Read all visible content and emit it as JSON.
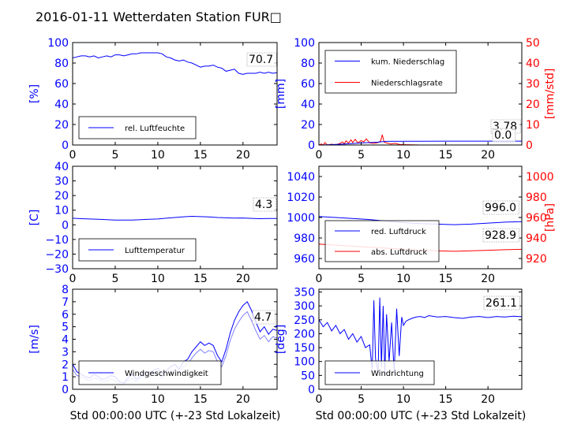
{
  "title": "2016-01-11 Wetterdaten Station FUR□",
  "xlabel": "Std 00:00:00 UTC (+-23 Std Lokalzeit)",
  "colors": {
    "left_axis": "#0000ff",
    "right_axis": "#ff0000",
    "wind_light": "#8080ff",
    "text": "#000000"
  },
  "chart_data": [
    {
      "id": "humidity",
      "type": "line",
      "x_ticks": [
        "0",
        "5",
        "10",
        "15",
        "20"
      ],
      "xlim": [
        0,
        24
      ],
      "ylim": [
        0,
        100
      ],
      "y_ticks": [
        "0",
        "20",
        "40",
        "60",
        "80",
        "100"
      ],
      "ylabel": "[%]",
      "legend": [
        "rel. Luftfeuchte"
      ],
      "value_label": "70.7",
      "series": [
        {
          "name": "rel. Luftfeuchte",
          "color": "#0000ff",
          "x": [
            0,
            0.5,
            1,
            1.5,
            2,
            2.5,
            3,
            3.5,
            4,
            4.5,
            5,
            5.5,
            6,
            6.5,
            7,
            7.5,
            8,
            8.5,
            9,
            9.5,
            10,
            10.5,
            11,
            11.5,
            12,
            12.5,
            13,
            13.5,
            14,
            14.5,
            15,
            15.5,
            16,
            16.5,
            17,
            17.5,
            18,
            18.5,
            19,
            19.5,
            20,
            20.5,
            21,
            21.5,
            22,
            22.5,
            23,
            23.5,
            24
          ],
          "y": [
            85,
            86,
            87,
            87,
            86,
            87,
            85,
            86,
            87,
            86,
            88,
            88,
            87,
            88,
            89,
            89,
            90,
            90,
            90,
            90,
            90,
            89,
            86,
            85,
            83,
            82,
            83,
            81,
            80,
            78,
            76,
            77,
            77,
            78,
            76,
            75,
            72,
            73,
            74,
            70,
            69,
            70,
            70,
            70,
            71,
            70,
            71,
            70,
            70.7
          ]
        }
      ]
    },
    {
      "id": "precipitation",
      "type": "line",
      "x_ticks": [
        "0",
        "5",
        "10",
        "15",
        "20"
      ],
      "xlim": [
        0,
        24
      ],
      "ylim": [
        0,
        100
      ],
      "y_ticks": [
        "0",
        "20",
        "40",
        "60",
        "80",
        "100"
      ],
      "ylabel": "[mm]",
      "y2lim": [
        0,
        50
      ],
      "y2_ticks": [
        "0",
        "10",
        "20",
        "30",
        "40",
        "50"
      ],
      "y2label": "[mm/std]",
      "legend": [
        "kum. Niederschlag",
        "Niederschlagsrate"
      ],
      "value_labels": [
        "3.78",
        "0.0"
      ],
      "series": [
        {
          "name": "kum. Niederschlag",
          "axis": "left",
          "color": "#0000ff",
          "x": [
            0,
            1,
            2,
            3,
            4,
            5,
            6,
            7,
            7.5,
            8,
            10,
            12,
            15,
            18,
            20,
            22,
            24
          ],
          "y": [
            0,
            0.2,
            0.5,
            1.0,
            1.5,
            2.0,
            2.4,
            2.8,
            3.3,
            3.5,
            3.6,
            3.7,
            3.75,
            3.78,
            3.78,
            3.78,
            3.78
          ]
        },
        {
          "name": "Niederschlagsrate",
          "axis": "right",
          "color": "#ff0000",
          "x": [
            0,
            0.3,
            0.5,
            0.7,
            1,
            1.5,
            2,
            2.5,
            2.8,
            3,
            3.2,
            3.5,
            3.8,
            4,
            4.3,
            4.6,
            5,
            5.3,
            5.6,
            6,
            6.5,
            7,
            7.3,
            7.5,
            7.7,
            8,
            8.5,
            9,
            9.5,
            10,
            11,
            12,
            14,
            16,
            18,
            20,
            22,
            24
          ],
          "y": [
            0,
            0.5,
            0,
            1.2,
            0,
            0.4,
            0,
            0.8,
            1.5,
            0.5,
            2.0,
            1.0,
            2.5,
            1.2,
            2.8,
            1.0,
            2.2,
            1.5,
            3.0,
            1.0,
            0.8,
            1.2,
            2.0,
            5.0,
            1.5,
            1.0,
            0.5,
            0.8,
            0.3,
            0.2,
            0.1,
            0,
            0,
            0,
            0,
            0,
            0,
            0
          ]
        }
      ]
    },
    {
      "id": "temperature",
      "type": "line",
      "x_ticks": [
        "0",
        "5",
        "10",
        "15",
        "20"
      ],
      "xlim": [
        0,
        24
      ],
      "ylim": [
        -30,
        40
      ],
      "y_ticks": [
        "−30",
        "−20",
        "−10",
        "0",
        "10",
        "20",
        "30",
        "40"
      ],
      "ylabel": "[C]",
      "legend": [
        "Lufttemperatur"
      ],
      "value_label": "4.3",
      "series": [
        {
          "name": "Lufttemperatur",
          "color": "#0000ff",
          "x": [
            0,
            1,
            2,
            3,
            4,
            5,
            6,
            7,
            8,
            9,
            10,
            11,
            12,
            13,
            14,
            15,
            16,
            17,
            18,
            19,
            20,
            21,
            22,
            23,
            24
          ],
          "y": [
            4.5,
            4.2,
            4.0,
            3.8,
            3.5,
            3.3,
            3.2,
            3.3,
            3.5,
            3.8,
            4.0,
            4.5,
            5.0,
            5.5,
            5.8,
            5.6,
            5.4,
            5.0,
            4.8,
            4.6,
            4.7,
            4.4,
            4.2,
            4.3,
            4.3
          ]
        }
      ]
    },
    {
      "id": "pressure",
      "type": "line",
      "x_ticks": [
        "0",
        "5",
        "10",
        "15",
        "20"
      ],
      "xlim": [
        0,
        24
      ],
      "ylim": [
        950,
        1050
      ],
      "y_ticks": [
        "960",
        "980",
        "1000",
        "1020",
        "1040"
      ],
      "ylabel": "",
      "y2lim": [
        910,
        1010
      ],
      "y2_ticks": [
        "920",
        "940",
        "960",
        "980",
        "1000"
      ],
      "y2label": "[hPa]",
      "legend": [
        "red. Luftdruck",
        "abs. Luftdruck"
      ],
      "value_labels": [
        "996.0",
        "928.9"
      ],
      "series": [
        {
          "name": "red. Luftdruck",
          "axis": "left",
          "color": "#0000ff",
          "x": [
            0,
            2,
            4,
            6,
            8,
            10,
            12,
            14,
            16,
            18,
            20,
            22,
            24
          ],
          "y": [
            1001,
            1000,
            999,
            998,
            996.5,
            995,
            994,
            993.5,
            993,
            993.5,
            994.5,
            995.5,
            996
          ]
        },
        {
          "name": "abs. Luftdruck",
          "axis": "right",
          "color": "#ff0000",
          "x": [
            0,
            2,
            4,
            6,
            8,
            10,
            12,
            14,
            16,
            18,
            20,
            22,
            24
          ],
          "y": [
            934,
            933,
            932,
            931,
            930,
            929,
            928,
            927.5,
            927,
            927.5,
            928,
            928.5,
            928.9
          ]
        }
      ]
    },
    {
      "id": "wind_speed",
      "type": "line",
      "x_ticks": [
        "0",
        "5",
        "10",
        "15",
        "20"
      ],
      "xlim": [
        0,
        24
      ],
      "ylim": [
        0,
        8
      ],
      "y_ticks": [
        "0",
        "1",
        "2",
        "3",
        "4",
        "5",
        "6",
        "7",
        "8"
      ],
      "ylabel": "[m/s]",
      "legend": [
        "Windgeschwindigkeit"
      ],
      "value_label": "4.7",
      "series": [
        {
          "name": "Windgeschwindigkeit",
          "color": "#0000ff",
          "x": [
            0,
            0.5,
            1,
            1.5,
            2,
            2.5,
            3,
            3.5,
            4,
            4.5,
            5,
            5.5,
            6,
            6.5,
            7,
            7.5,
            8,
            8.5,
            9,
            9.5,
            10,
            10.5,
            11,
            11.5,
            12,
            12.5,
            13,
            13.5,
            14,
            14.5,
            15,
            15.5,
            16,
            16.5,
            17,
            17.5,
            18,
            18.5,
            19,
            19.5,
            20,
            20.5,
            21,
            21.5,
            22,
            22.5,
            23,
            23.5,
            24
          ],
          "y": [
            2.0,
            1.4,
            1.2,
            1.0,
            0.9,
            1.2,
            1.0,
            0.8,
            0.9,
            1.1,
            1.0,
            0.6,
            0.5,
            0.9,
            1.2,
            0.8,
            1.1,
            1.4,
            1.3,
            1.5,
            1.7,
            1.2,
            1.5,
            1.8,
            2.0,
            1.6,
            2.2,
            2.4,
            3.0,
            3.4,
            3.8,
            3.5,
            3.7,
            3.5,
            2.7,
            2.2,
            3.2,
            4.5,
            5.5,
            6.2,
            6.7,
            7.0,
            6.3,
            5.4,
            4.6,
            5.0,
            4.4,
            4.8,
            4.7
          ]
        },
        {
          "name": "",
          "color": "#8080ff",
          "x": [
            0,
            0.5,
            1,
            1.5,
            2,
            2.5,
            3,
            3.5,
            4,
            4.5,
            5,
            5.5,
            6,
            6.5,
            7,
            7.5,
            8,
            8.5,
            9,
            9.5,
            10,
            10.5,
            11,
            11.5,
            12,
            12.5,
            13,
            13.5,
            14,
            14.5,
            15,
            15.5,
            16,
            16.5,
            17,
            17.5,
            18,
            18.5,
            19,
            19.5,
            20,
            20.5,
            21,
            21.5,
            22,
            22.5,
            23,
            23.5,
            24
          ],
          "y": [
            1.6,
            1.1,
            1.0,
            0.8,
            0.7,
            0.9,
            0.8,
            0.6,
            0.7,
            0.8,
            0.7,
            0.4,
            0.4,
            0.7,
            0.9,
            0.6,
            0.9,
            1.1,
            1.0,
            1.2,
            1.3,
            0.9,
            1.2,
            1.4,
            1.6,
            1.3,
            1.8,
            2.0,
            2.5,
            2.9,
            3.2,
            2.9,
            3.1,
            3.0,
            2.2,
            1.8,
            2.7,
            3.9,
            4.8,
            5.4,
            5.9,
            6.2,
            5.5,
            4.7,
            4.0,
            4.3,
            3.8,
            4.2,
            4.1
          ]
        }
      ]
    },
    {
      "id": "wind_direction",
      "type": "line",
      "x_ticks": [
        "0",
        "5",
        "10",
        "15",
        "20"
      ],
      "xlim": [
        0,
        24
      ],
      "ylim": [
        0,
        360
      ],
      "y_ticks": [
        "0",
        "50",
        "100",
        "150",
        "200",
        "250",
        "300",
        "350"
      ],
      "ylabel": "[deg]",
      "legend": [
        "Windrichtung"
      ],
      "value_label": "261.1",
      "series": [
        {
          "name": "Windrichtung",
          "color": "#0000ff",
          "x": [
            0,
            0.5,
            1,
            1.5,
            2,
            2.5,
            3,
            3.5,
            4,
            4.5,
            5,
            5.5,
            6,
            6.3,
            6.5,
            6.7,
            7,
            7.2,
            7.4,
            7.6,
            7.8,
            8.0,
            8.3,
            8.6,
            8.9,
            9.2,
            9.5,
            9.8,
            10,
            10.3,
            10.6,
            11,
            11.5,
            12,
            12.5,
            13,
            14,
            15,
            16,
            17,
            18,
            19,
            20,
            21,
            22,
            23,
            24
          ],
          "y": [
            250,
            225,
            240,
            210,
            230,
            200,
            215,
            180,
            200,
            170,
            190,
            150,
            160,
            70,
            320,
            110,
            60,
            330,
            80,
            300,
            50,
            270,
            100,
            240,
            60,
            290,
            120,
            260,
            230,
            245,
            250,
            255,
            260,
            262,
            258,
            265,
            260,
            262,
            258,
            255,
            260,
            262,
            258,
            262,
            260,
            263,
            261.1
          ]
        }
      ]
    }
  ]
}
